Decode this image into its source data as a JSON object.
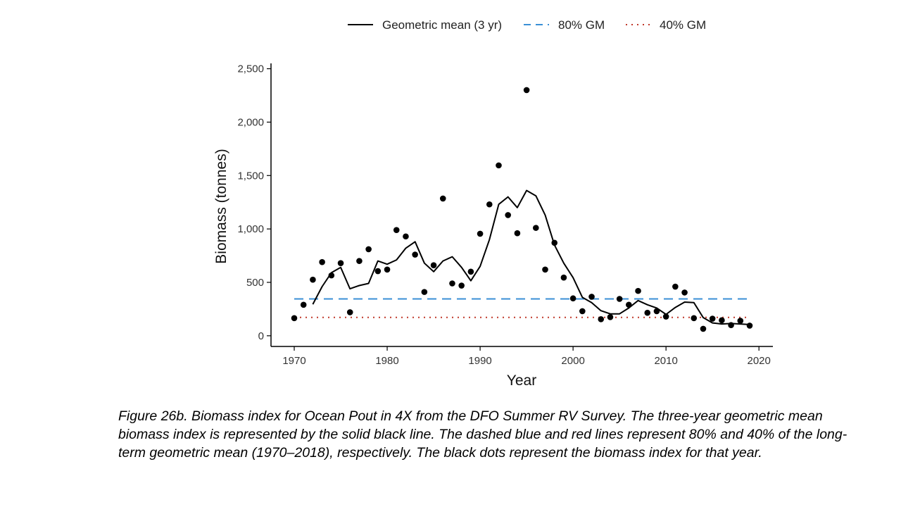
{
  "chart_data": {
    "type": "line",
    "xlabel": "Year",
    "ylabel": "Biomass (tonnes)",
    "xlim": [
      1967.5,
      2021.5
    ],
    "ylim": [
      -100,
      2550
    ],
    "x_ticks": [
      1970,
      1980,
      1990,
      2000,
      2010,
      2020
    ],
    "x_tick_labels": [
      "1970",
      "1980",
      "1990",
      "2000",
      "2010",
      "2020"
    ],
    "y_ticks": [
      0,
      500,
      1000,
      1500,
      2000,
      2500
    ],
    "y_tick_labels": [
      "0",
      "500",
      "1,000",
      "1,500",
      "2,000",
      "2,500"
    ],
    "grid": false,
    "legend": {
      "placement": "top",
      "entries": [
        {
          "label": "Geometric mean (3 yr)",
          "style": "solid",
          "color": "#000000"
        },
        {
          "label": "80% GM",
          "style": "dashed",
          "color": "#3a8fd6"
        },
        {
          "label": "40% GM",
          "style": "dotted",
          "color": "#c0392b"
        }
      ]
    },
    "points": {
      "x": [
        1970,
        1971,
        1972,
        1973,
        1974,
        1975,
        1976,
        1977,
        1978,
        1979,
        1980,
        1981,
        1982,
        1983,
        1984,
        1985,
        1986,
        1987,
        1988,
        1989,
        1990,
        1991,
        1992,
        1993,
        1994,
        1995,
        1996,
        1997,
        1998,
        1999,
        2000,
        2001,
        2002,
        2003,
        2004,
        2005,
        2006,
        2007,
        2008,
        2009,
        2010,
        2011,
        2012,
        2013,
        2014,
        2015,
        2016,
        2017,
        2018,
        2019
      ],
      "y": [
        165,
        290,
        525,
        690,
        565,
        680,
        220,
        700,
        810,
        605,
        620,
        990,
        930,
        760,
        410,
        660,
        1285,
        490,
        470,
        600,
        955,
        1230,
        1595,
        1130,
        960,
        2300,
        1010,
        620,
        870,
        545,
        350,
        230,
        365,
        155,
        175,
        345,
        290,
        420,
        215,
        230,
        180,
        460,
        405,
        165,
        65,
        160,
        145,
        100,
        140,
        95
      ]
    },
    "series": [
      {
        "name": "Geometric mean (3 yr)",
        "x": [
          1972,
          1973,
          1974,
          1975,
          1976,
          1977,
          1978,
          1979,
          1980,
          1981,
          1982,
          1983,
          1984,
          1985,
          1986,
          1987,
          1988,
          1989,
          1990,
          1991,
          1992,
          1993,
          1994,
          1995,
          1996,
          1997,
          1998,
          1999,
          2000,
          2001,
          2002,
          2003,
          2004,
          2005,
          2006,
          2007,
          2008,
          2009,
          2010,
          2011,
          2012,
          2013,
          2014,
          2015,
          2016,
          2017,
          2018,
          2019
        ],
        "y": [
          295,
          460,
          590,
          640,
          440,
          470,
          490,
          700,
          670,
          710,
          820,
          880,
          680,
          600,
          700,
          740,
          640,
          515,
          650,
          900,
          1230,
          1300,
          1200,
          1360,
          1310,
          1130,
          850,
          680,
          545,
          360,
          310,
          235,
          205,
          205,
          260,
          330,
          290,
          260,
          200,
          265,
          315,
          310,
          170,
          120,
          110,
          115,
          110,
          105
        ]
      },
      {
        "name": "80% GM",
        "style": "dashed",
        "color": "#3a8fd6",
        "x": [
          1970,
          2019
        ],
        "y": [
          345,
          345
        ]
      },
      {
        "name": "40% GM",
        "style": "dotted",
        "color": "#c0392b",
        "x": [
          1970,
          2019
        ],
        "y": [
          172,
          172
        ]
      }
    ]
  },
  "caption": "Figure 26b. Biomass index for Ocean Pout in 4X from the DFO Summer RV Survey. The three-year geometric mean biomass index is represented by the solid black line. The dashed blue and red lines represent 80% and 40% of the long-term geometric mean (1970–2018), respectively. The black dots represent the biomass index for that year."
}
